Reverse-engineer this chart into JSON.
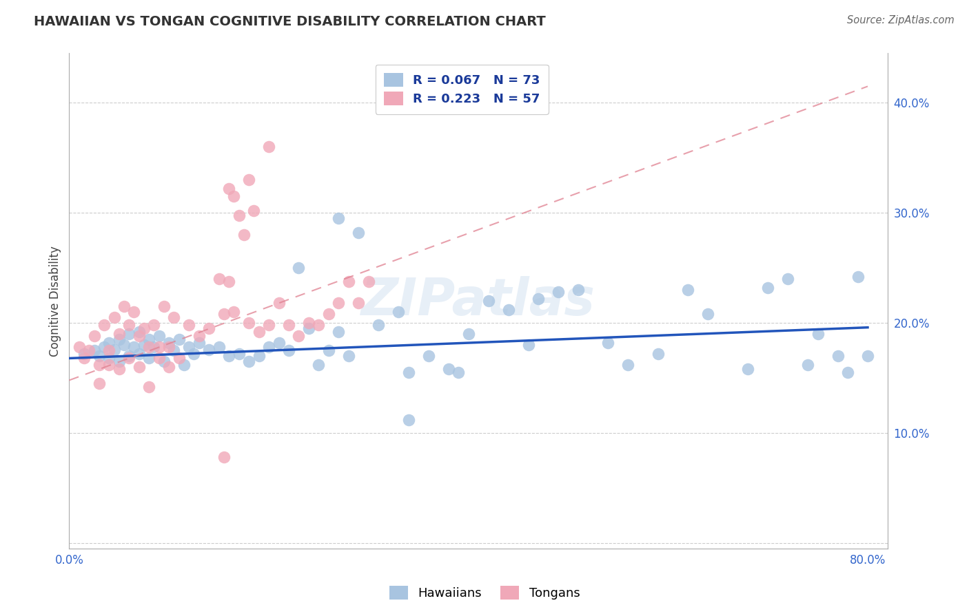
{
  "title": "HAWAIIAN VS TONGAN COGNITIVE DISABILITY CORRELATION CHART",
  "source": "Source: ZipAtlas.com",
  "ylabel": "Cognitive Disability",
  "hawaiian_color": "#a8c4e0",
  "tongan_color": "#f0a8b8",
  "hawaiian_line_color": "#2255bb",
  "tongan_line_color": "#e08090",
  "watermark": "ZIPatlas",
  "legend_R_hawaiian": "R = 0.067",
  "legend_N_hawaiian": "N = 73",
  "legend_R_tongan": "R = 0.223",
  "legend_N_tongan": "N = 57",
  "legend_text_color": "#1a3a99",
  "xlim": [
    0.0,
    0.82
  ],
  "ylim": [
    -0.005,
    0.445
  ],
  "yticks": [
    0.0,
    0.1,
    0.2,
    0.3,
    0.4
  ],
  "ytick_labels": [
    "",
    "10.0%",
    "20.0%",
    "30.0%",
    "40.0%"
  ],
  "xtick_positions": [
    0.0,
    0.1,
    0.2,
    0.3,
    0.4,
    0.5,
    0.6,
    0.7,
    0.8
  ],
  "xtick_labels": [
    "0.0%",
    "",
    "",
    "",
    "",
    "",
    "",
    "",
    "80.0%"
  ],
  "haw_trend_x": [
    0.0,
    0.8
  ],
  "haw_trend_y": [
    0.168,
    0.196
  ],
  "ton_trend_x": [
    0.0,
    0.8
  ],
  "ton_trend_y": [
    0.148,
    0.415
  ],
  "haw_x": [
    0.015,
    0.025,
    0.03,
    0.035,
    0.04,
    0.04,
    0.045,
    0.05,
    0.05,
    0.055,
    0.06,
    0.06,
    0.065,
    0.07,
    0.07,
    0.075,
    0.08,
    0.08,
    0.085,
    0.09,
    0.095,
    0.1,
    0.105,
    0.11,
    0.115,
    0.12,
    0.125,
    0.13,
    0.14,
    0.15,
    0.16,
    0.17,
    0.18,
    0.19,
    0.2,
    0.21,
    0.22,
    0.23,
    0.24,
    0.25,
    0.26,
    0.27,
    0.29,
    0.31,
    0.33,
    0.34,
    0.36,
    0.38,
    0.39,
    0.4,
    0.42,
    0.44,
    0.46,
    0.47,
    0.49,
    0.51,
    0.54,
    0.56,
    0.59,
    0.62,
    0.64,
    0.68,
    0.7,
    0.72,
    0.74,
    0.75,
    0.77,
    0.78,
    0.79,
    0.8,
    0.34,
    0.27,
    0.28
  ],
  "haw_y": [
    0.172,
    0.175,
    0.17,
    0.178,
    0.182,
    0.168,
    0.176,
    0.185,
    0.165,
    0.18,
    0.19,
    0.17,
    0.178,
    0.192,
    0.172,
    0.18,
    0.185,
    0.168,
    0.178,
    0.188,
    0.165,
    0.182,
    0.175,
    0.185,
    0.162,
    0.178,
    0.172,
    0.182,
    0.176,
    0.178,
    0.17,
    0.172,
    0.165,
    0.17,
    0.178,
    0.182,
    0.175,
    0.25,
    0.195,
    0.162,
    0.175,
    0.295,
    0.282,
    0.198,
    0.21,
    0.155,
    0.17,
    0.158,
    0.155,
    0.19,
    0.22,
    0.212,
    0.18,
    0.222,
    0.228,
    0.23,
    0.182,
    0.162,
    0.172,
    0.23,
    0.208,
    0.158,
    0.232,
    0.24,
    0.162,
    0.19,
    0.17,
    0.155,
    0.242,
    0.17,
    0.112,
    0.192,
    0.17
  ],
  "ton_x": [
    0.01,
    0.015,
    0.02,
    0.025,
    0.03,
    0.03,
    0.035,
    0.04,
    0.04,
    0.045,
    0.05,
    0.05,
    0.055,
    0.06,
    0.06,
    0.065,
    0.07,
    0.07,
    0.075,
    0.08,
    0.08,
    0.085,
    0.09,
    0.09,
    0.095,
    0.1,
    0.1,
    0.105,
    0.11,
    0.12,
    0.13,
    0.14,
    0.15,
    0.155,
    0.16,
    0.165,
    0.17,
    0.175,
    0.18,
    0.19,
    0.2,
    0.21,
    0.22,
    0.23,
    0.24,
    0.25,
    0.26,
    0.27,
    0.28,
    0.29,
    0.3,
    0.155,
    0.165,
    0.185,
    0.16,
    0.18,
    0.2
  ],
  "ton_y": [
    0.178,
    0.168,
    0.175,
    0.188,
    0.162,
    0.145,
    0.198,
    0.175,
    0.162,
    0.205,
    0.19,
    0.158,
    0.215,
    0.198,
    0.168,
    0.21,
    0.188,
    0.16,
    0.195,
    0.178,
    0.142,
    0.198,
    0.168,
    0.178,
    0.215,
    0.178,
    0.16,
    0.205,
    0.168,
    0.198,
    0.188,
    0.195,
    0.24,
    0.208,
    0.238,
    0.21,
    0.298,
    0.28,
    0.2,
    0.192,
    0.198,
    0.218,
    0.198,
    0.188,
    0.2,
    0.198,
    0.208,
    0.218,
    0.238,
    0.218,
    0.238,
    0.078,
    0.315,
    0.302,
    0.322,
    0.33,
    0.36
  ]
}
